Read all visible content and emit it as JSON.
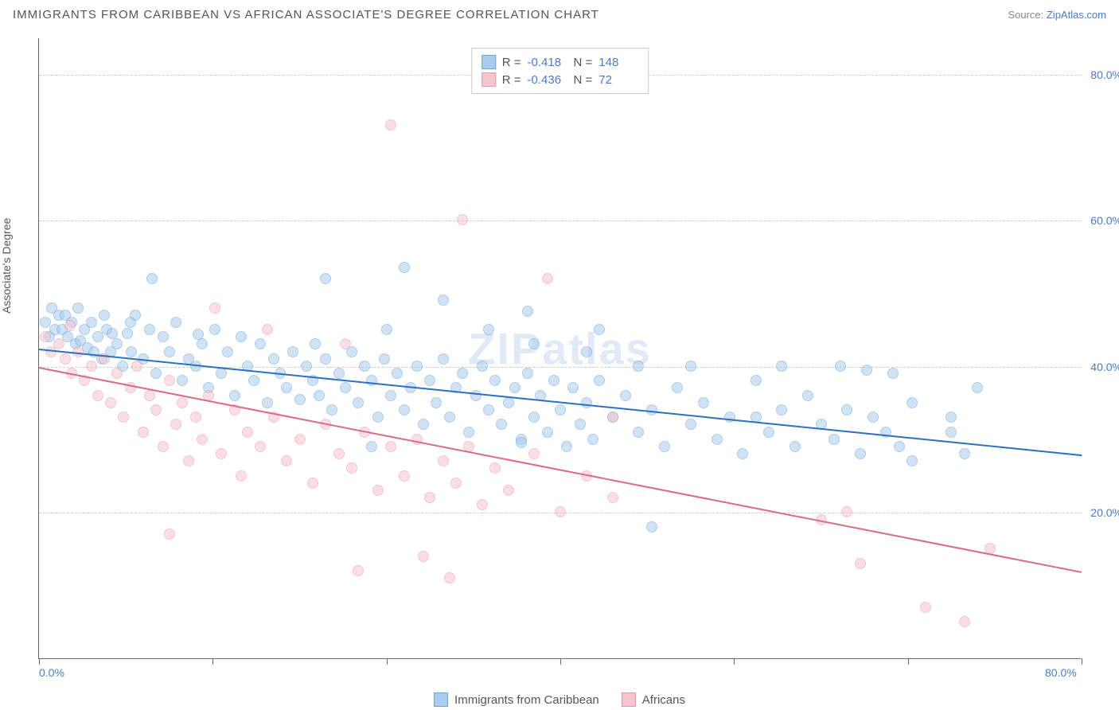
{
  "title": "IMMIGRANTS FROM CARIBBEAN VS AFRICAN ASSOCIATE'S DEGREE CORRELATION CHART",
  "source": {
    "prefix": "Source: ",
    "link_text": "ZipAtlas.com"
  },
  "y_axis_label": "Associate's Degree",
  "watermark": "ZIPatlas",
  "chart": {
    "type": "scatter",
    "xlim": [
      0,
      80
    ],
    "ylim": [
      0,
      85
    ],
    "x_tick_positions": [
      0,
      13.3,
      26.7,
      40,
      53.3,
      66.7,
      80
    ],
    "x_tick_labels": {
      "0": "0.0%",
      "80": "80.0%"
    },
    "y_gridlines": [
      20,
      40,
      60,
      80
    ],
    "y_tick_labels": {
      "20": "20.0%",
      "40": "40.0%",
      "60": "60.0%",
      "80": "80.0%"
    },
    "background_color": "#ffffff",
    "grid_color": "#cccccc",
    "axis_color": "#666666",
    "tick_label_color": "#4a7bc8",
    "point_radius": 7,
    "point_opacity": 0.55,
    "series": [
      {
        "name": "Immigrants from Caribbean",
        "color_fill": "#a9cdec",
        "color_stroke": "#6ea5d8",
        "R": "-0.418",
        "N": "148",
        "trend": {
          "x1": 0,
          "y1": 42.5,
          "x2": 80,
          "y2": 28,
          "color": "#2e6fc0",
          "width": 2
        },
        "points": [
          [
            0.5,
            46
          ],
          [
            0.8,
            44
          ],
          [
            1,
            48
          ],
          [
            1.2,
            45
          ],
          [
            1.5,
            47
          ],
          [
            1.8,
            45
          ],
          [
            2,
            47
          ],
          [
            2.2,
            44
          ],
          [
            2.5,
            46
          ],
          [
            2.8,
            43
          ],
          [
            3,
            48
          ],
          [
            3.2,
            43.5
          ],
          [
            3.5,
            45
          ],
          [
            3.7,
            42.5
          ],
          [
            4,
            46
          ],
          [
            4.2,
            42
          ],
          [
            4.5,
            44
          ],
          [
            4.8,
            41
          ],
          [
            5,
            47
          ],
          [
            5.2,
            45
          ],
          [
            5.5,
            42
          ],
          [
            5.6,
            44.5
          ],
          [
            6,
            43
          ],
          [
            6.4,
            40
          ],
          [
            6.8,
            44.5
          ],
          [
            7,
            46
          ],
          [
            7.4,
            47
          ],
          [
            7.1,
            42
          ],
          [
            8,
            41
          ],
          [
            8.5,
            45
          ],
          [
            8.7,
            52
          ],
          [
            9,
            39
          ],
          [
            9.5,
            44
          ],
          [
            10,
            42
          ],
          [
            10.5,
            46
          ],
          [
            11,
            38
          ],
          [
            11.5,
            41
          ],
          [
            12,
            40
          ],
          [
            12.2,
            44.3
          ],
          [
            12.5,
            43
          ],
          [
            13,
            37
          ],
          [
            13.5,
            45
          ],
          [
            14,
            39
          ],
          [
            14.5,
            42
          ],
          [
            15,
            36
          ],
          [
            15.5,
            44
          ],
          [
            16,
            40
          ],
          [
            16.5,
            38
          ],
          [
            17,
            43
          ],
          [
            17.5,
            35
          ],
          [
            18,
            41
          ],
          [
            18.5,
            39
          ],
          [
            19,
            37
          ],
          [
            19.5,
            42
          ],
          [
            20,
            35.4
          ],
          [
            20.5,
            40
          ],
          [
            21,
            38
          ],
          [
            21.2,
            43
          ],
          [
            21.5,
            36
          ],
          [
            22,
            41
          ],
          [
            22.5,
            34
          ],
          [
            23,
            39
          ],
          [
            22,
            52
          ],
          [
            23.5,
            37
          ],
          [
            24,
            42
          ],
          [
            24.5,
            35
          ],
          [
            25,
            40
          ],
          [
            25.5,
            38
          ],
          [
            26,
            33
          ],
          [
            25.5,
            29
          ],
          [
            26.5,
            41
          ],
          [
            27,
            36
          ],
          [
            26.7,
            45
          ],
          [
            27.5,
            39
          ],
          [
            28,
            34
          ],
          [
            28.5,
            37
          ],
          [
            28,
            53.5
          ],
          [
            29,
            40
          ],
          [
            29.5,
            32
          ],
          [
            30,
            38
          ],
          [
            30.5,
            35
          ],
          [
            31,
            41
          ],
          [
            31.5,
            33
          ],
          [
            32,
            37
          ],
          [
            31,
            49
          ],
          [
            32.5,
            39
          ],
          [
            33,
            31
          ],
          [
            33.5,
            36
          ],
          [
            34,
            40
          ],
          [
            34.5,
            34
          ],
          [
            35,
            38
          ],
          [
            35.5,
            32
          ],
          [
            34.5,
            45
          ],
          [
            36,
            35
          ],
          [
            36.5,
            37
          ],
          [
            37,
            30
          ],
          [
            37.5,
            39
          ],
          [
            38,
            33
          ],
          [
            37.5,
            47.5
          ],
          [
            37,
            29.5
          ],
          [
            38.5,
            36
          ],
          [
            39,
            31
          ],
          [
            39.5,
            38
          ],
          [
            40,
            34
          ],
          [
            38,
            43
          ],
          [
            40.5,
            29
          ],
          [
            41,
            37
          ],
          [
            41.5,
            32
          ],
          [
            42,
            35
          ],
          [
            42.5,
            30
          ],
          [
            43,
            38
          ],
          [
            44,
            33
          ],
          [
            42,
            42
          ],
          [
            45,
            36
          ],
          [
            46,
            31
          ],
          [
            43,
            45
          ],
          [
            47,
            34
          ],
          [
            48,
            29
          ],
          [
            46,
            40
          ],
          [
            49,
            37
          ],
          [
            47,
            18
          ],
          [
            50,
            32
          ],
          [
            51,
            35
          ],
          [
            50,
            40
          ],
          [
            52,
            30
          ],
          [
            53,
            33
          ],
          [
            55,
            38
          ],
          [
            54,
            28
          ],
          [
            55,
            33
          ],
          [
            56,
            31
          ],
          [
            57,
            34
          ],
          [
            57,
            40
          ],
          [
            58,
            29
          ],
          [
            59,
            36
          ],
          [
            60,
            32
          ],
          [
            61,
            30
          ],
          [
            61.5,
            40
          ],
          [
            62,
            34
          ],
          [
            63,
            28
          ],
          [
            63.5,
            39.5
          ],
          [
            64,
            33
          ],
          [
            65,
            31
          ],
          [
            65.5,
            39
          ],
          [
            66,
            29
          ],
          [
            67,
            35
          ],
          [
            67,
            27
          ],
          [
            70,
            33
          ],
          [
            70,
            31
          ],
          [
            72,
            37
          ],
          [
            71,
            28
          ]
        ]
      },
      {
        "name": "Africans",
        "color_fill": "#f5c4cf",
        "color_stroke": "#e697a9",
        "R": "-0.436",
        "N": "72",
        "trend": {
          "x1": 0,
          "y1": 40,
          "x2": 80,
          "y2": 12,
          "color": "#d86b87",
          "width": 2
        },
        "points": [
          [
            0.5,
            44
          ],
          [
            0.9,
            42
          ],
          [
            1.5,
            43
          ],
          [
            2,
            41
          ],
          [
            2.4,
            45.5
          ],
          [
            2.5,
            39
          ],
          [
            3,
            42
          ],
          [
            3.5,
            38
          ],
          [
            4,
            40
          ],
          [
            4.5,
            36
          ],
          [
            5,
            41
          ],
          [
            5.5,
            35
          ],
          [
            6,
            39
          ],
          [
            6.5,
            33
          ],
          [
            7,
            37
          ],
          [
            7.5,
            40
          ],
          [
            8,
            31
          ],
          [
            8.5,
            36
          ],
          [
            9,
            34
          ],
          [
            9.5,
            29
          ],
          [
            10,
            38
          ],
          [
            10,
            17
          ],
          [
            10.5,
            32
          ],
          [
            11,
            35
          ],
          [
            11.5,
            27
          ],
          [
            12,
            33
          ],
          [
            13.5,
            48
          ],
          [
            12.5,
            30
          ],
          [
            13,
            36
          ],
          [
            14,
            28
          ],
          [
            15,
            34
          ],
          [
            15.5,
            25
          ],
          [
            16,
            31
          ],
          [
            17,
            29
          ],
          [
            17.5,
            45
          ],
          [
            18,
            33
          ],
          [
            19,
            27
          ],
          [
            20,
            30
          ],
          [
            21,
            24
          ],
          [
            22,
            32
          ],
          [
            23,
            28
          ],
          [
            23.5,
            43
          ],
          [
            24,
            26
          ],
          [
            27,
            73
          ],
          [
            25,
            31
          ],
          [
            26,
            23
          ],
          [
            24.5,
            12
          ],
          [
            27,
            29
          ],
          [
            28,
            25
          ],
          [
            29.5,
            14
          ],
          [
            29,
            30
          ],
          [
            30,
            22
          ],
          [
            31,
            27
          ],
          [
            32.5,
            60
          ],
          [
            32,
            24
          ],
          [
            33,
            29
          ],
          [
            31.5,
            11
          ],
          [
            34,
            21
          ],
          [
            35,
            26
          ],
          [
            39,
            52
          ],
          [
            36,
            23
          ],
          [
            38,
            28
          ],
          [
            40,
            20
          ],
          [
            42,
            25
          ],
          [
            44,
            33
          ],
          [
            44,
            22
          ],
          [
            60,
            19
          ],
          [
            62,
            20
          ],
          [
            63,
            13
          ],
          [
            68,
            7
          ],
          [
            71,
            5
          ],
          [
            73,
            15
          ]
        ]
      }
    ]
  },
  "bottom_legend": [
    {
      "label": "Immigrants from Caribbean",
      "fill": "#a9cdec",
      "stroke": "#6ea5d8"
    },
    {
      "label": "Africans",
      "fill": "#f5c4cf",
      "stroke": "#e697a9"
    }
  ]
}
